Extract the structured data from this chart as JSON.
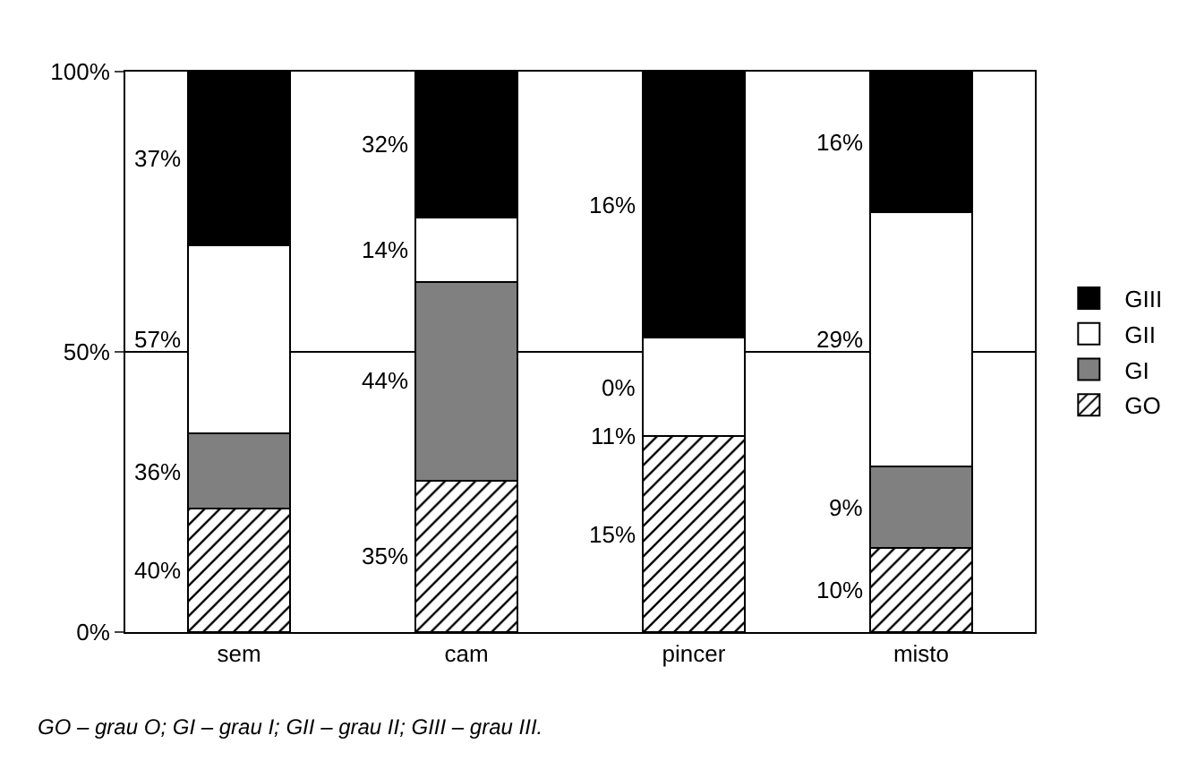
{
  "chart_data": {
    "type": "bar",
    "stacked": true,
    "categories": [
      "sem",
      "cam",
      "pincer",
      "misto"
    ],
    "series": [
      {
        "name": "GO",
        "color": "#000000",
        "values": [
          22,
          27,
          35,
          15
        ]
      },
      {
        "name": "GI",
        "color": "#808080",
        "values": [
          13.5,
          35.5,
          0,
          14.5
        ]
      },
      {
        "name": "GII",
        "color": "#ffffff",
        "values": [
          33.5,
          11.5,
          17.5,
          45.5
        ]
      },
      {
        "name": "GIII",
        "color": "#000000",
        "values": [
          31,
          26,
          47.5,
          25
        ]
      }
    ],
    "ylim": [
      0,
      100
    ],
    "yticks": [
      {
        "value": 0,
        "label": "0%"
      },
      {
        "value": 50,
        "label": "50%"
      },
      {
        "value": 100,
        "label": "100%"
      }
    ],
    "grid": "y",
    "legend": "right",
    "annotations": [
      "40%",
      "36%",
      "57%",
      "37%",
      "35%",
      "44%",
      "14%",
      "32%",
      "15%",
      "11%",
      "0%",
      "16%",
      "10%",
      "9%",
      "29%",
      "16%",
      "GO – grau O; GI – grau I; GII – grau II; GIII – grau III."
    ]
  }
}
